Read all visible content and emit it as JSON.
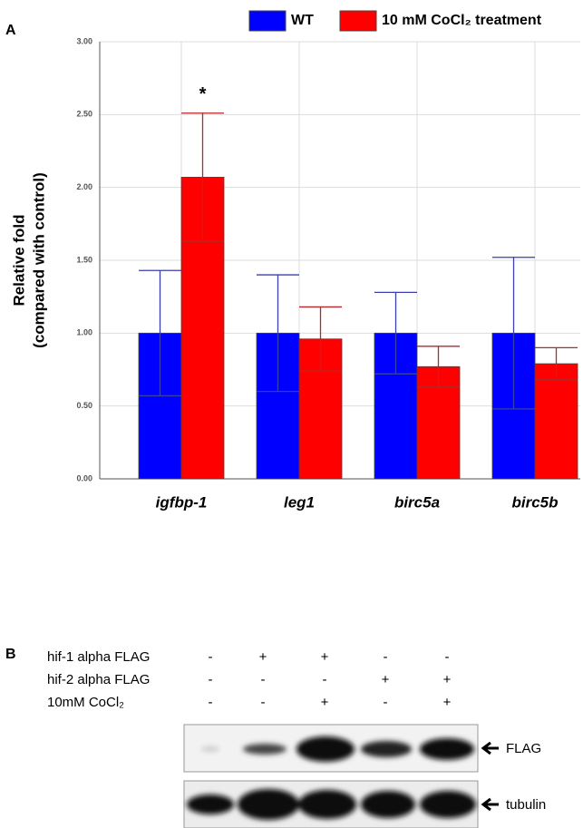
{
  "chart_data": {
    "type": "bar",
    "panel_label": "A",
    "ylabel": [
      "Relative fold",
      "(compared with control)"
    ],
    "categories": [
      "igfbp-1",
      "leg1",
      "birc5a",
      "birc5b"
    ],
    "series": [
      {
        "name": "WT",
        "color": "#0000ff",
        "error_color": "#3a3fb0",
        "values": [
          1.0,
          1.0,
          1.0,
          1.0
        ],
        "errors": [
          0.43,
          0.4,
          0.28,
          0.52
        ]
      },
      {
        "name": "10 mM CoCl₂ treatment",
        "color": "#ff0000",
        "error_color": "#b02a2a",
        "values": [
          2.07,
          0.96,
          0.77,
          0.79
        ],
        "errors": [
          0.44,
          0.22,
          0.14,
          0.11
        ]
      }
    ],
    "annotation": "*",
    "ylim": [
      0,
      3
    ],
    "yticks": [
      {
        "value": 0,
        "label": "0.00"
      },
      {
        "value": 0.5,
        "label": "0.50"
      },
      {
        "value": 1,
        "label": "1.00"
      },
      {
        "value": 1.5,
        "label": "1.50"
      },
      {
        "value": 2,
        "label": "2.00"
      },
      {
        "value": 2.5,
        "label": "2.50"
      },
      {
        "value": 3,
        "label": "3.00"
      }
    ],
    "grid": true
  },
  "blot": {
    "panel_label": "B",
    "rows": [
      {
        "label": "hif-1 alpha FLAG",
        "signs": [
          "-",
          "+",
          "+",
          "-",
          "-"
        ]
      },
      {
        "label": "hif-2 alpha FLAG",
        "signs": [
          "-",
          "-",
          "-",
          "+",
          "+"
        ]
      },
      {
        "label": "10mM CoCl₂",
        "signs": [
          "-",
          "-",
          "+",
          "-",
          "+"
        ]
      }
    ],
    "bands": [
      "FLAG",
      "tubulin"
    ]
  }
}
